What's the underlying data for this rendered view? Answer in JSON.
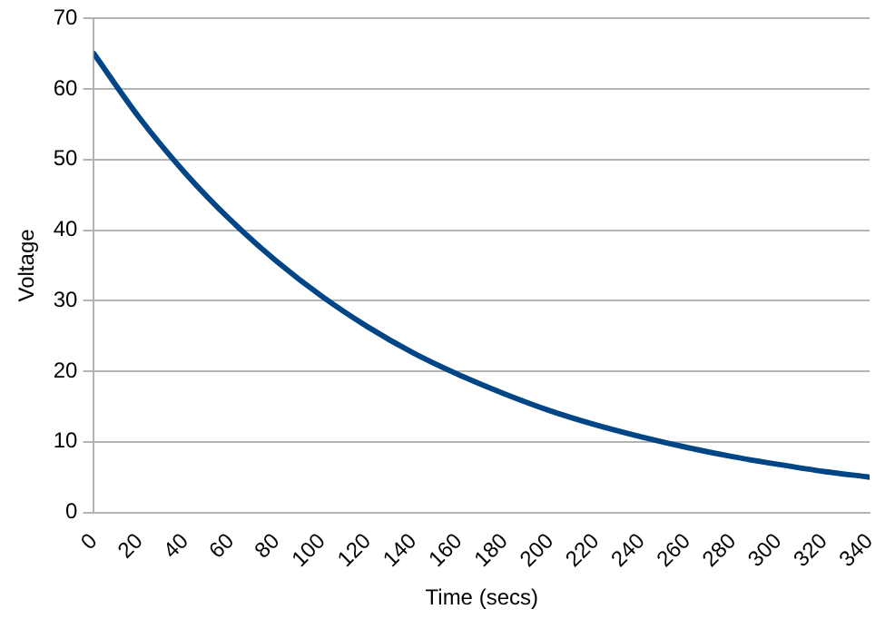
{
  "chart_data": {
    "type": "line",
    "xlabel": "Time (secs)",
    "ylabel": "Voltage",
    "x": [
      0,
      20,
      40,
      60,
      80,
      100,
      120,
      140,
      160,
      180,
      200,
      220,
      240,
      260,
      280,
      300,
      320,
      340
    ],
    "series": [
      {
        "color": "#004586",
        "values": [
          65,
          55.9,
          48.1,
          41.4,
          35.6,
          30.6,
          26.3,
          22.6,
          19.5,
          16.8,
          14.4,
          12.4,
          10.7,
          9.2,
          7.9,
          6.8,
          5.8,
          5
        ]
      }
    ],
    "xlim": [
      0,
      340
    ],
    "xticks": [
      0,
      20,
      40,
      60,
      80,
      100,
      120,
      140,
      160,
      180,
      200,
      220,
      240,
      260,
      280,
      300,
      320,
      340
    ],
    "ylim": [
      0,
      70
    ],
    "yticks": [
      0,
      10,
      20,
      30,
      40,
      50,
      60,
      70
    ],
    "grid": "y",
    "legend": false,
    "marker": "none",
    "line_style": "solid"
  }
}
